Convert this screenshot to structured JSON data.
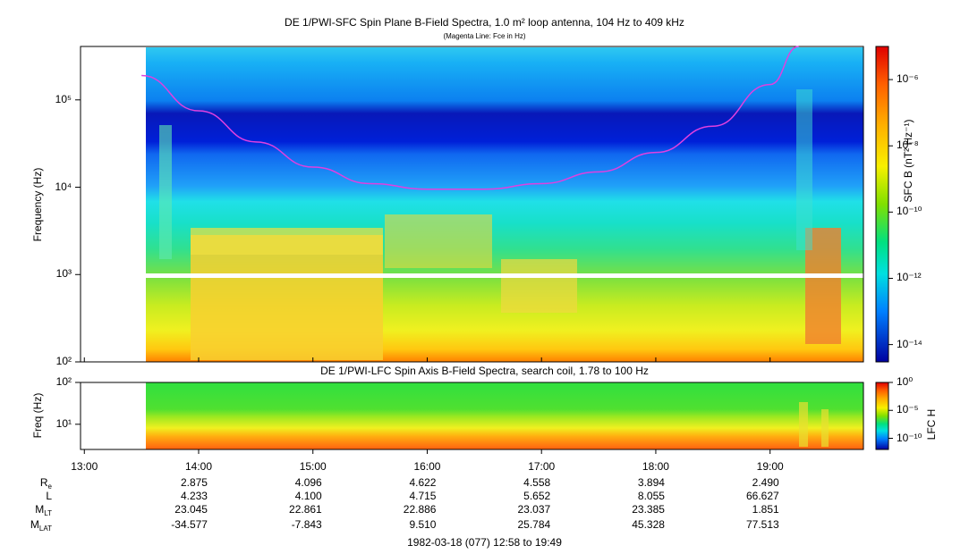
{
  "sfc_title": "DE 1/PWI-SFC  Spin Plane B-Field Spectra, 1.0 m² loop antenna, 104 Hz to 409 kHz",
  "sfc_subtitle": "(Magenta Line: Fce in Hz)",
  "lfc_title": "DE 1/PWI-LFC  Spin Axis B-Field Spectra, search coil, 1.78 to 100 Hz",
  "colors": {
    "fce_line": "#e040e0",
    "background": "#ffffff"
  },
  "chart_data": [
    {
      "type": "heatmap",
      "title": "DE 1/PWI-SFC  Spin Plane B-Field Spectra, 1.0 m² loop antenna, 104 Hz to 409 kHz",
      "subtitle": "(Magenta Line: Fce in Hz)",
      "ylabel": "Frequency (Hz)",
      "yscale": "log",
      "ylim": [
        100,
        409000
      ],
      "yticks": [
        "10²",
        "10³",
        "10⁴",
        "10⁵"
      ],
      "xlim": [
        "12:58",
        "19:49"
      ],
      "data_start": "13:30",
      "colorbar": {
        "label": "SFC B (nT² Hz⁻¹)",
        "scale": "log",
        "range": [
          3e-15,
          1e-05
        ],
        "ticks": [
          "10⁻⁶",
          "10⁻⁸",
          "10⁻¹⁰",
          "10⁻¹²",
          "10⁻¹⁴"
        ]
      },
      "gap_band_hz": [
        900,
        1000
      ],
      "fce_line": {
        "name": "Fce",
        "x": [
          "13:30",
          "14:00",
          "14:30",
          "15:00",
          "15:30",
          "16:00",
          "16:30",
          "17:00",
          "17:30",
          "18:00",
          "18:30",
          "19:00",
          "19:15"
        ],
        "y": [
          190000,
          75000,
          33000,
          17000,
          11000,
          9500,
          9500,
          11000,
          15000,
          25000,
          50000,
          150000,
          409000
        ]
      }
    },
    {
      "type": "heatmap",
      "title": "DE 1/PWI-LFC  Spin Axis B-Field Spectra, search coil, 1.78 to 100 Hz",
      "ylabel": "Freq (Hz)",
      "yscale": "log",
      "ylim": [
        2.5,
        100
      ],
      "yticks": [
        "10¹",
        "10²"
      ],
      "colorbar": {
        "label": "LFC H",
        "scale": "log",
        "range": [
          1e-12,
          1
        ],
        "ticks": [
          "10⁰",
          "10⁻⁵",
          "10⁻¹⁰"
        ]
      }
    }
  ],
  "time_axis": {
    "labels": [
      "13:00",
      "14:00",
      "15:00",
      "16:00",
      "17:00",
      "18:00",
      "19:00"
    ]
  },
  "ephemeris": {
    "rows": [
      {
        "label": "Re",
        "values": [
          "2.875",
          "4.096",
          "4.622",
          "4.558",
          "3.894",
          "2.490"
        ]
      },
      {
        "label": "L",
        "values": [
          "4.233",
          "4.100",
          "4.715",
          "5.652",
          "8.055",
          "66.627"
        ]
      },
      {
        "label": "MLT",
        "values": [
          "23.045",
          "22.861",
          "22.886",
          "23.037",
          "23.385",
          "1.851"
        ]
      },
      {
        "label": "MLAT",
        "values": [
          "-34.577",
          "-7.843",
          "9.510",
          "25.784",
          "45.328",
          "77.513"
        ]
      }
    ]
  },
  "date_range": "1982-03-18 (077) 12:58 to 19:49"
}
